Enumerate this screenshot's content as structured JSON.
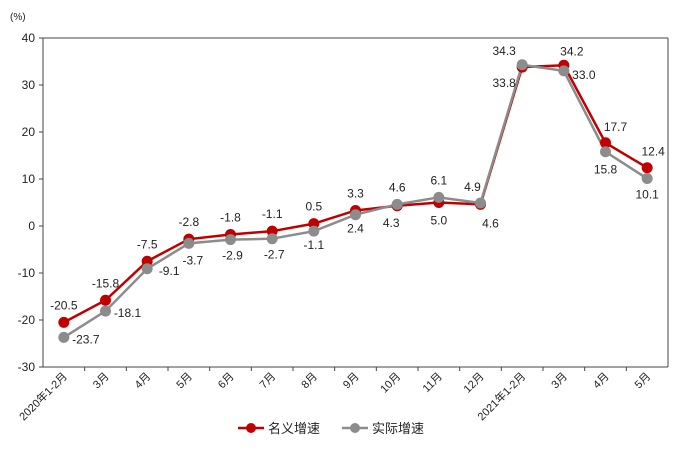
{
  "chart_data": {
    "type": "line",
    "unit_label": "(%)",
    "categories": [
      "2020年1-2月",
      "3月",
      "4月",
      "5月",
      "6月",
      "7月",
      "8月",
      "9月",
      "10月",
      "11月",
      "12月",
      "2021年1-2月",
      "3月",
      "4月",
      "5月"
    ],
    "series": [
      {
        "name": "名义增速",
        "color": "#c00000",
        "values": [
          -20.5,
          -15.8,
          -7.5,
          -2.8,
          -1.8,
          -1.1,
          0.5,
          3.3,
          4.3,
          5.0,
          4.6,
          33.8,
          34.2,
          17.7,
          12.4
        ]
      },
      {
        "name": "实际增速",
        "color": "#8c8c8c",
        "values": [
          -23.7,
          -18.1,
          -9.1,
          -3.7,
          -2.9,
          -2.7,
          -1.1,
          2.4,
          4.6,
          6.1,
          4.9,
          34.3,
          33.0,
          15.8,
          10.1
        ]
      }
    ],
    "ylim": [
      -30,
      40
    ],
    "yticks": [
      -30,
      -20,
      -10,
      0,
      10,
      20,
      30,
      40
    ],
    "grid": false,
    "legend": "bottom-center"
  }
}
